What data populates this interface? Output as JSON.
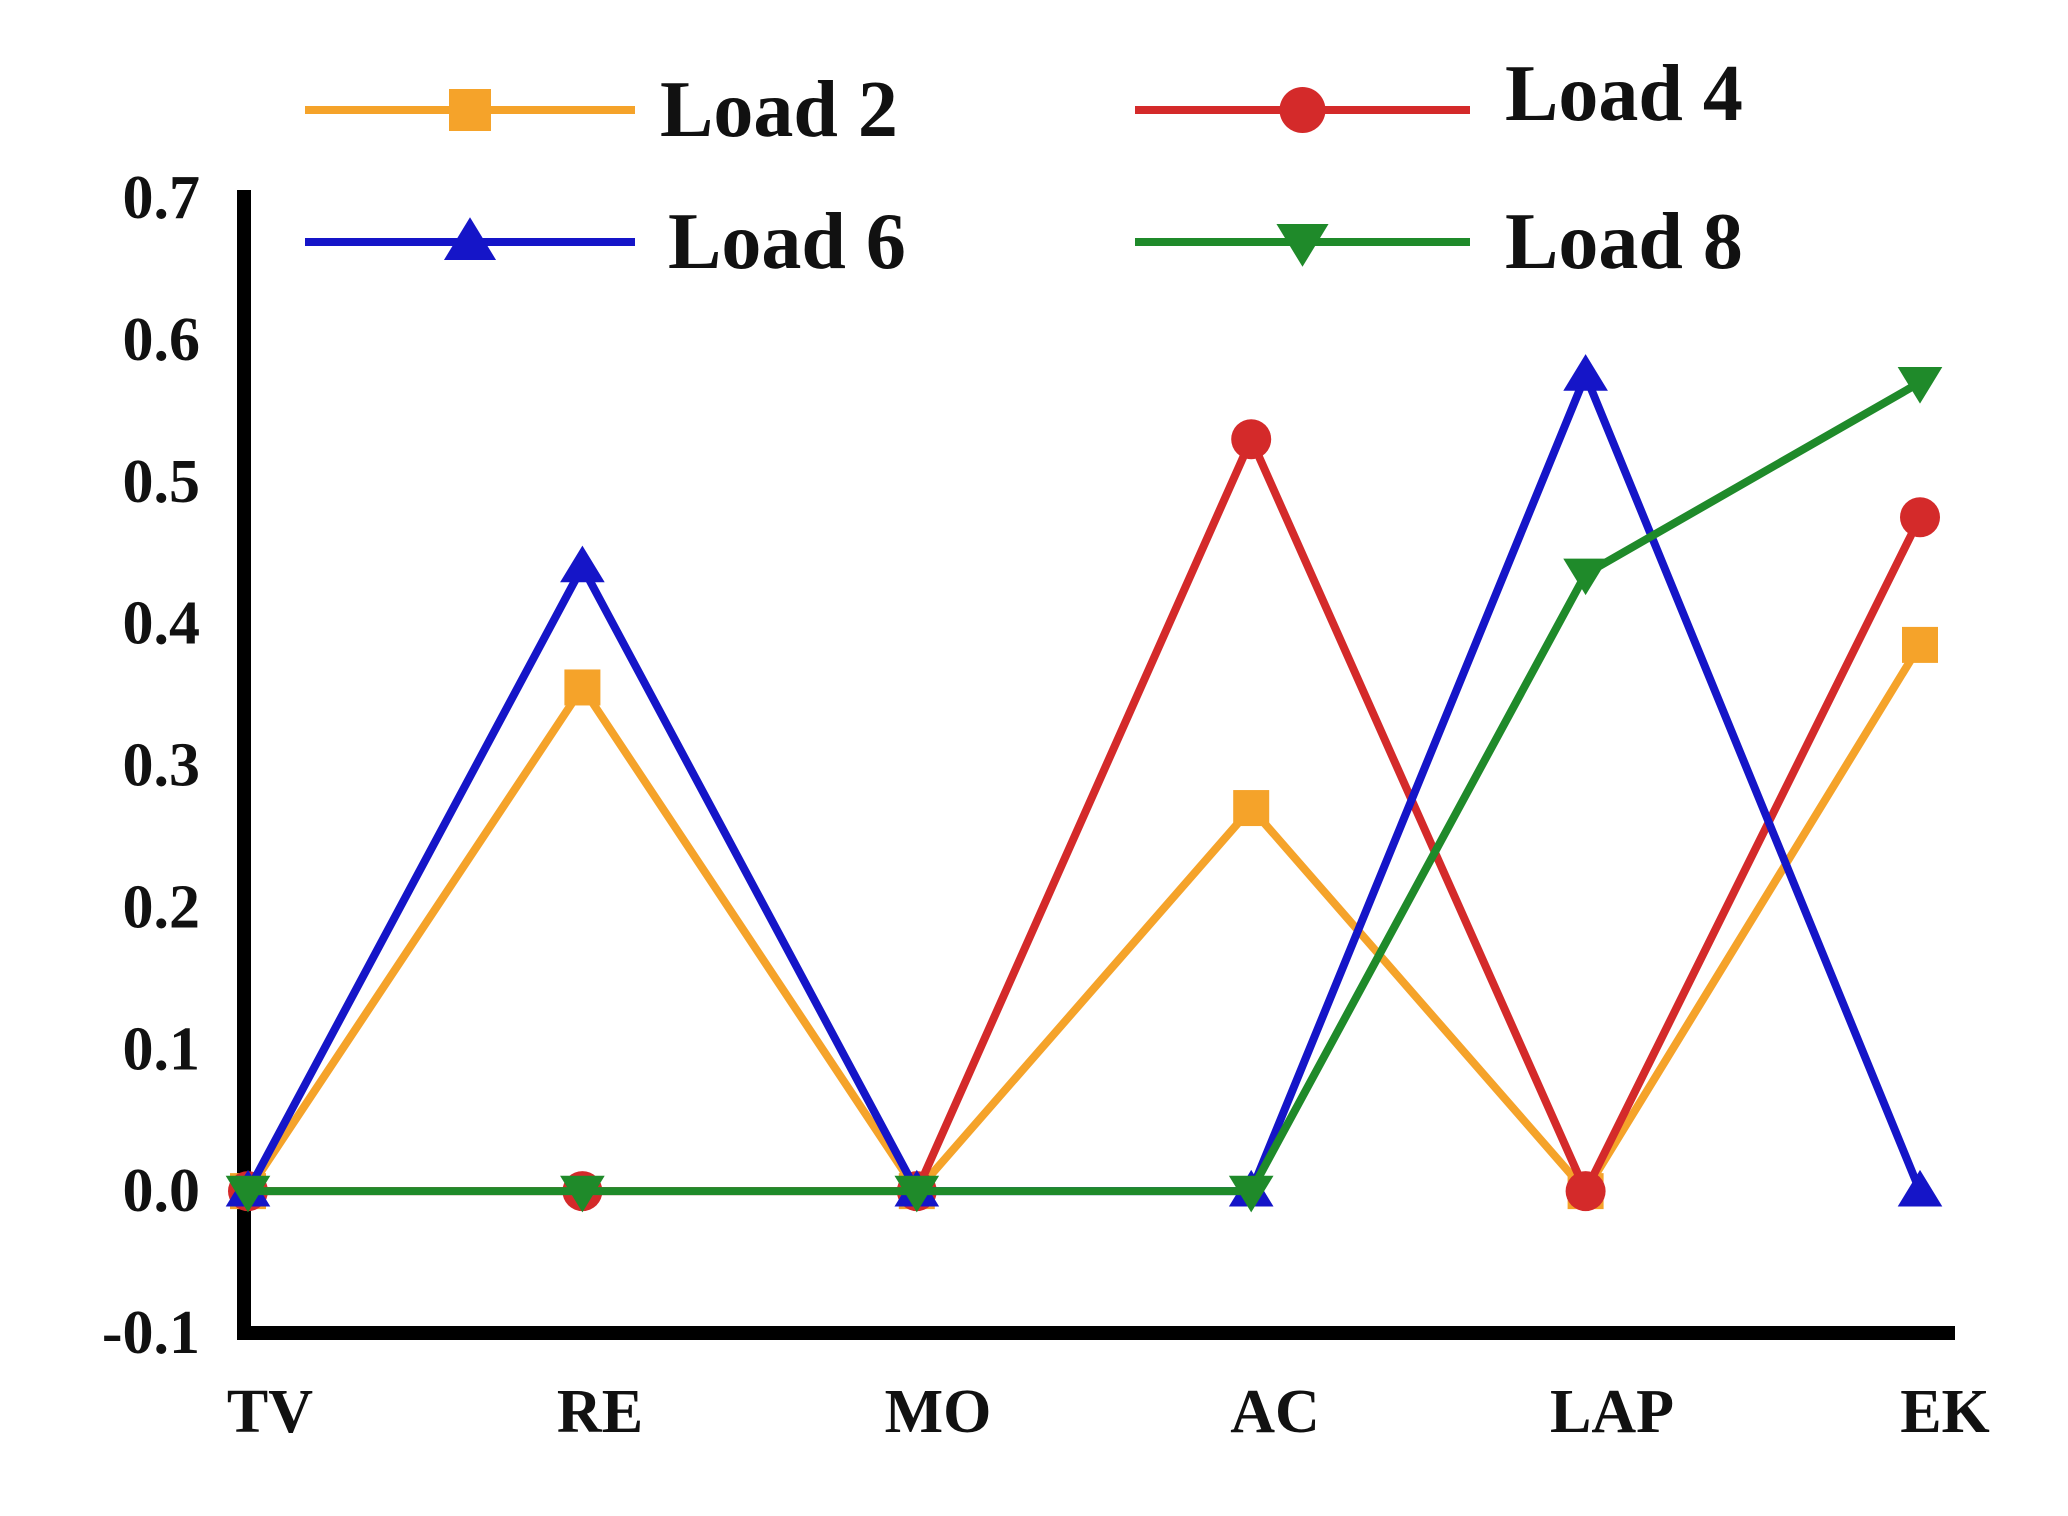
{
  "chart_data": {
    "type": "line",
    "categories": [
      "TV",
      "RE",
      "MO",
      "AC",
      "LAP",
      "EK"
    ],
    "ylim": [
      -0.1,
      0.7
    ],
    "yticks": [
      "0.7",
      "0.6",
      "0.5",
      "0.4",
      "0.3",
      "0.2",
      "0.1",
      "0.0",
      "-0.1"
    ],
    "grid": false,
    "legend_position": "top",
    "series": [
      {
        "name": "Load 2",
        "color": "#f5a32a",
        "marker": "square",
        "values": [
          0,
          0.355,
          0,
          0.27,
          0,
          0.385
        ]
      },
      {
        "name": "Load 4",
        "color": "#d42a2a",
        "marker": "circle",
        "values": [
          0,
          0,
          0,
          0.53,
          0,
          0.475
        ]
      },
      {
        "name": "Load 6",
        "color": "#1515c8",
        "marker": "triangle-up",
        "values": [
          0,
          0.44,
          0,
          0,
          0.575,
          0
        ]
      },
      {
        "name": "Load 8",
        "color": "#1f8a2a",
        "marker": "triangle-down",
        "values": [
          0,
          0,
          0,
          0,
          0.435,
          0.57
        ]
      }
    ]
  }
}
